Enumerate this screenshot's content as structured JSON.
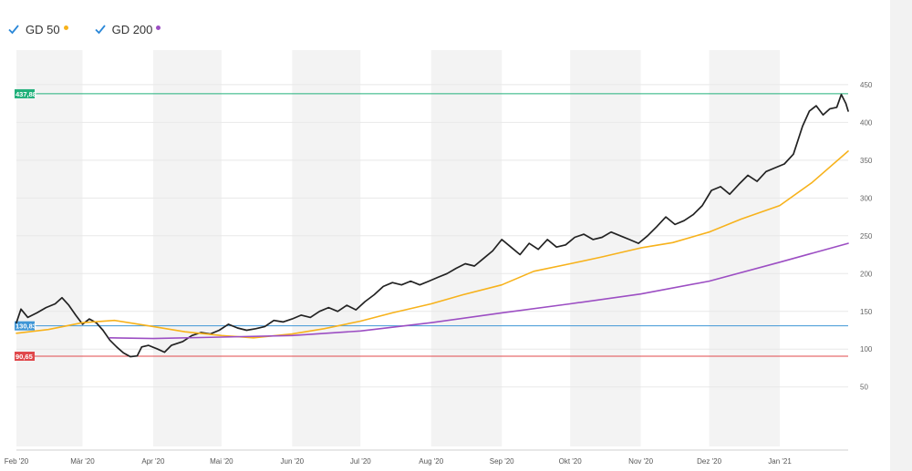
{
  "legend": [
    {
      "label": "GD 50",
      "color": "#f7b21b",
      "checked": true,
      "icon": "checkmark-icon"
    },
    {
      "label": "GD 200",
      "color": "#9c4ec3",
      "checked": true,
      "icon": "checkmark-icon"
    }
  ],
  "chart_data": {
    "type": "line",
    "x_range": [
      "2020-02-01",
      "2021-01-31"
    ],
    "ylim": [
      0,
      470
    ],
    "y_ticks": [
      50,
      100,
      150,
      200,
      250,
      300,
      350,
      400,
      450
    ],
    "x_ticks": [
      {
        "date": "2020-02-01",
        "label": "Feb '20"
      },
      {
        "date": "2020-03-01",
        "label": "Mär '20"
      },
      {
        "date": "2020-04-01",
        "label": "Apr '20"
      },
      {
        "date": "2020-05-01",
        "label": "Mai '20"
      },
      {
        "date": "2020-06-01",
        "label": "Jun '20"
      },
      {
        "date": "2020-07-01",
        "label": "Jul '20"
      },
      {
        "date": "2020-08-01",
        "label": "Aug '20"
      },
      {
        "date": "2020-09-01",
        "label": "Sep '20"
      },
      {
        "date": "2020-10-01",
        "label": "Okt '20"
      },
      {
        "date": "2020-11-01",
        "label": "Nov '20"
      },
      {
        "date": "2020-12-01",
        "label": "Dez '20"
      },
      {
        "date": "2021-01-01",
        "label": "Jan '21"
      }
    ],
    "horizontal_lines": [
      {
        "value": 437.88,
        "label": "437,88",
        "color": "#20b07a"
      },
      {
        "value": 130.83,
        "label": "130,83",
        "color": "#3f96d6"
      },
      {
        "value": 90.65,
        "label": "90,65",
        "color": "#e0484b"
      }
    ],
    "series": [
      {
        "color": "#222222",
        "points": [
          [
            "2020-02-01",
            135
          ],
          [
            "2020-02-03",
            153
          ],
          [
            "2020-02-06",
            142
          ],
          [
            "2020-02-10",
            148
          ],
          [
            "2020-02-14",
            155
          ],
          [
            "2020-02-18",
            160
          ],
          [
            "2020-02-21",
            168
          ],
          [
            "2020-02-24",
            158
          ],
          [
            "2020-02-27",
            145
          ],
          [
            "2020-03-01",
            133
          ],
          [
            "2020-03-04",
            140
          ],
          [
            "2020-03-07",
            135
          ],
          [
            "2020-03-10",
            125
          ],
          [
            "2020-03-13",
            112
          ],
          [
            "2020-03-16",
            103
          ],
          [
            "2020-03-19",
            95
          ],
          [
            "2020-03-22",
            90
          ],
          [
            "2020-03-25",
            91
          ],
          [
            "2020-03-27",
            103
          ],
          [
            "2020-03-30",
            105
          ],
          [
            "2020-04-03",
            100
          ],
          [
            "2020-04-06",
            96
          ],
          [
            "2020-04-09",
            105
          ],
          [
            "2020-04-14",
            110
          ],
          [
            "2020-04-18",
            118
          ],
          [
            "2020-04-22",
            122
          ],
          [
            "2020-04-26",
            120
          ],
          [
            "2020-04-30",
            125
          ],
          [
            "2020-05-04",
            133
          ],
          [
            "2020-05-08",
            128
          ],
          [
            "2020-05-12",
            125
          ],
          [
            "2020-05-16",
            127
          ],
          [
            "2020-05-20",
            130
          ],
          [
            "2020-05-24",
            138
          ],
          [
            "2020-05-28",
            136
          ],
          [
            "2020-06-01",
            140
          ],
          [
            "2020-06-05",
            145
          ],
          [
            "2020-06-09",
            142
          ],
          [
            "2020-06-13",
            150
          ],
          [
            "2020-06-17",
            155
          ],
          [
            "2020-06-21",
            150
          ],
          [
            "2020-06-25",
            158
          ],
          [
            "2020-06-29",
            152
          ],
          [
            "2020-07-03",
            163
          ],
          [
            "2020-07-07",
            172
          ],
          [
            "2020-07-11",
            183
          ],
          [
            "2020-07-15",
            188
          ],
          [
            "2020-07-19",
            185
          ],
          [
            "2020-07-23",
            190
          ],
          [
            "2020-07-27",
            185
          ],
          [
            "2020-07-31",
            190
          ],
          [
            "2020-08-04",
            195
          ],
          [
            "2020-08-08",
            200
          ],
          [
            "2020-08-12",
            207
          ],
          [
            "2020-08-16",
            213
          ],
          [
            "2020-08-20",
            210
          ],
          [
            "2020-08-24",
            220
          ],
          [
            "2020-08-28",
            230
          ],
          [
            "2020-09-01",
            245
          ],
          [
            "2020-09-05",
            235
          ],
          [
            "2020-09-09",
            225
          ],
          [
            "2020-09-13",
            240
          ],
          [
            "2020-09-17",
            232
          ],
          [
            "2020-09-21",
            245
          ],
          [
            "2020-09-25",
            235
          ],
          [
            "2020-09-29",
            238
          ],
          [
            "2020-10-03",
            248
          ],
          [
            "2020-10-07",
            252
          ],
          [
            "2020-10-11",
            245
          ],
          [
            "2020-10-15",
            248
          ],
          [
            "2020-10-19",
            255
          ],
          [
            "2020-10-23",
            250
          ],
          [
            "2020-10-27",
            245
          ],
          [
            "2020-10-31",
            240
          ],
          [
            "2020-11-04",
            250
          ],
          [
            "2020-11-08",
            262
          ],
          [
            "2020-11-12",
            275
          ],
          [
            "2020-11-16",
            265
          ],
          [
            "2020-11-20",
            270
          ],
          [
            "2020-11-24",
            278
          ],
          [
            "2020-11-28",
            290
          ],
          [
            "2020-12-02",
            310
          ],
          [
            "2020-12-06",
            315
          ],
          [
            "2020-12-10",
            305
          ],
          [
            "2020-12-14",
            318
          ],
          [
            "2020-12-18",
            330
          ],
          [
            "2020-12-22",
            322
          ],
          [
            "2020-12-26",
            335
          ],
          [
            "2020-12-30",
            340
          ],
          [
            "2021-01-03",
            345
          ],
          [
            "2021-01-07",
            358
          ],
          [
            "2021-01-11",
            395
          ],
          [
            "2021-01-14",
            415
          ],
          [
            "2021-01-17",
            422
          ],
          [
            "2021-01-20",
            410
          ],
          [
            "2021-01-23",
            418
          ],
          [
            "2021-01-26",
            420
          ],
          [
            "2021-01-28",
            437
          ],
          [
            "2021-01-30",
            425
          ],
          [
            "2021-01-31",
            415
          ]
        ]
      },
      {
        "name": "GD 50",
        "color": "#f7b21b",
        "points": [
          [
            "2020-02-01",
            121
          ],
          [
            "2020-02-15",
            126
          ],
          [
            "2020-03-01",
            135
          ],
          [
            "2020-03-15",
            138
          ],
          [
            "2020-04-01",
            130
          ],
          [
            "2020-04-15",
            123
          ],
          [
            "2020-05-01",
            118
          ],
          [
            "2020-05-15",
            115
          ],
          [
            "2020-06-01",
            120
          ],
          [
            "2020-06-15",
            127
          ],
          [
            "2020-07-01",
            137
          ],
          [
            "2020-07-15",
            148
          ],
          [
            "2020-08-01",
            160
          ],
          [
            "2020-08-15",
            172
          ],
          [
            "2020-09-01",
            185
          ],
          [
            "2020-09-15",
            203
          ],
          [
            "2020-10-01",
            213
          ],
          [
            "2020-10-15",
            222
          ],
          [
            "2020-11-01",
            234
          ],
          [
            "2020-11-15",
            241
          ],
          [
            "2020-12-01",
            255
          ],
          [
            "2020-12-15",
            272
          ],
          [
            "2021-01-01",
            290
          ],
          [
            "2021-01-15",
            320
          ],
          [
            "2021-01-31",
            362
          ]
        ]
      },
      {
        "name": "GD 200",
        "color": "#9c4ec3",
        "points": [
          [
            "2020-03-13",
            115
          ],
          [
            "2020-04-01",
            114
          ],
          [
            "2020-05-01",
            116
          ],
          [
            "2020-06-01",
            118
          ],
          [
            "2020-07-01",
            124
          ],
          [
            "2020-08-01",
            135
          ],
          [
            "2020-09-01",
            148
          ],
          [
            "2020-10-01",
            160
          ],
          [
            "2020-11-01",
            173
          ],
          [
            "2020-12-01",
            190
          ],
          [
            "2021-01-01",
            215
          ],
          [
            "2021-01-31",
            240
          ]
        ]
      }
    ]
  }
}
